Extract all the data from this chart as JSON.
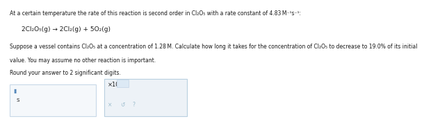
{
  "bg_color": "#ffffff",
  "text_color": "#1a1a1a",
  "gray_text": "#555555",
  "line1": "At a certain temperature the rate of this reaction is second order in Cl₂O₅ with a rate constant of 4.83 M⁻¹s⁻¹:",
  "line2": "2Cl₂O₅(g) → 2Cl₂(g) + 5O₂(g)",
  "line3a": "Suppose a vessel contains Cl₂O₅ at a concentration of 1.28 M. Calculate how long it takes for the concentration of Cl₂O₅ to decrease to 19.0% of its initial",
  "line3b": "value. You may assume no other reaction is important.",
  "line4": "Round your answer to 2 significant digits.",
  "input_box_color": "#f5f8fb",
  "input_box_border": "#c8d8e8",
  "answer_box_color": "#edf2f7",
  "answer_box_border": "#b8cfe0",
  "cursor_color": "#5588bb",
  "button_color": "#99bbcc",
  "fs_body": 5.5,
  "fs_eq": 6.5,
  "fs_btn": 5.5
}
